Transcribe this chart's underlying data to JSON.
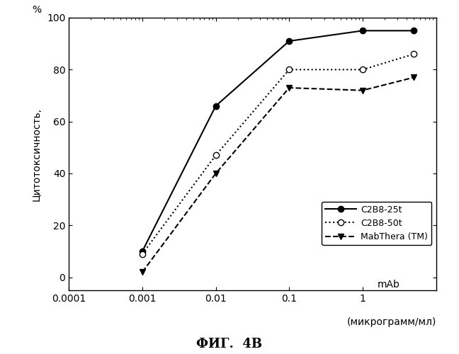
{
  "series": [
    {
      "label": "C2B8-25t",
      "x": [
        0.001,
        0.01,
        0.1,
        1,
        5
      ],
      "y": [
        10,
        66,
        91,
        95,
        95
      ],
      "linestyle": "-",
      "marker": "o",
      "markerfacecolor": "black",
      "markeredgecolor": "black",
      "color": "black",
      "markersize": 6,
      "linewidth": 1.5
    },
    {
      "label": "C2B8-50t",
      "x": [
        0.001,
        0.01,
        0.1,
        1,
        5
      ],
      "y": [
        9,
        47,
        80,
        80,
        86
      ],
      "linestyle": ":",
      "marker": "o",
      "markerfacecolor": "white",
      "markeredgecolor": "black",
      "color": "black",
      "markersize": 6,
      "linewidth": 1.5
    },
    {
      "label": "MabThera (TM)",
      "x": [
        0.001,
        0.01,
        0.1,
        1,
        5
      ],
      "y": [
        2,
        40,
        73,
        72,
        77
      ],
      "linestyle": "--",
      "marker": "v",
      "markerfacecolor": "black",
      "markeredgecolor": "black",
      "color": "black",
      "markersize": 6,
      "linewidth": 1.5
    }
  ],
  "xlim": [
    0.0001,
    10
  ],
  "ylim": [
    -5,
    100
  ],
  "yticks": [
    0,
    20,
    40,
    60,
    80,
    100
  ],
  "xticks": [
    0.0001,
    0.001,
    0.01,
    0.1,
    1
  ],
  "xticklabels": [
    "0.0001",
    "0.001",
    "0.01",
    "0.1",
    "1"
  ],
  "ylabel_rotated": "Цитотоксичность,",
  "ylabel_top": "%",
  "xlabel_mab": "mAb",
  "xlabel_units": "(микрограмм/мл)",
  "title": "ФИГ.  4В",
  "background_color": "white"
}
